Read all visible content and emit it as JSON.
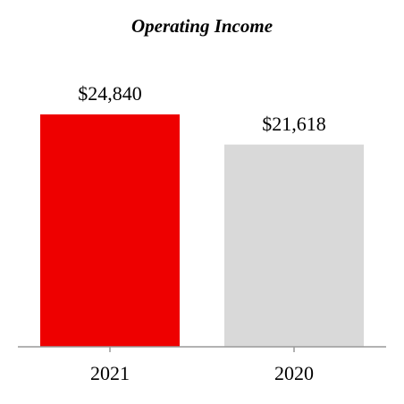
{
  "chart_data": {
    "type": "bar",
    "title": "Operating Income",
    "categories": [
      "2021",
      "2020"
    ],
    "values": [
      24840,
      21618
    ],
    "value_labels": [
      "$24,840",
      "$21,618"
    ],
    "colors": [
      "#ee0000",
      "#d9d9d9"
    ],
    "ylim": [
      0,
      30000
    ]
  }
}
